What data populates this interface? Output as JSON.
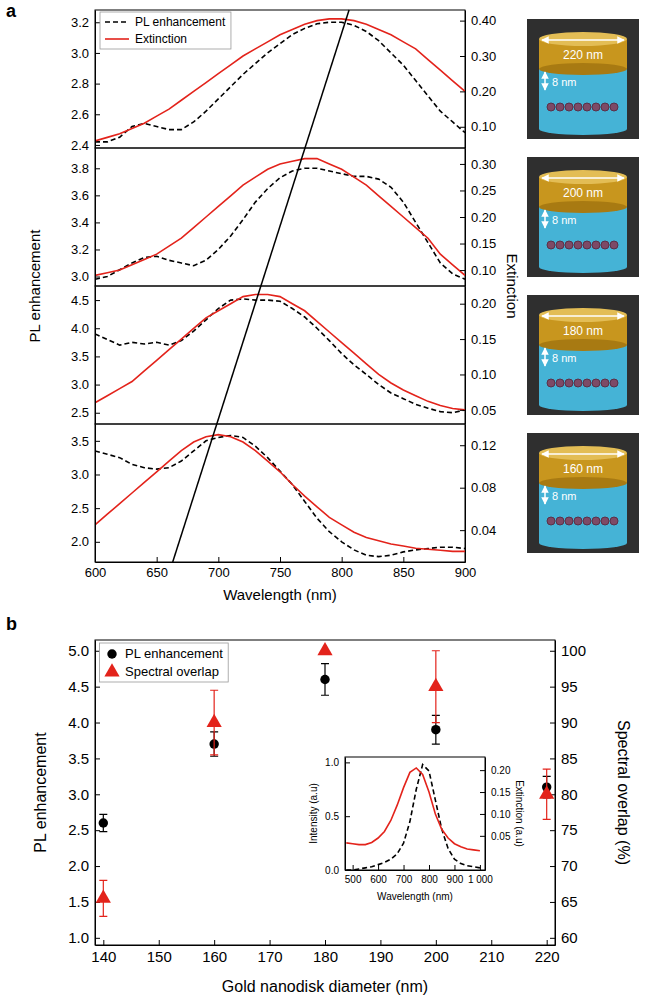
{
  "chart_data": [
    {
      "type": "line",
      "panel": "a",
      "ylabel": "PL enhancement",
      "y2label": "Extinction",
      "legend": "upper left",
      "guide_line": {
        "x": [
          806,
          663
        ]
      },
      "annotations": [
        "220 nm",
        "8 nm"
      ],
      "x": [
        600,
        610,
        620,
        630,
        640,
        650,
        660,
        670,
        680,
        690,
        700,
        710,
        720,
        730,
        740,
        750,
        760,
        770,
        780,
        790,
        800,
        810,
        820,
        830,
        840,
        850,
        860,
        870,
        880,
        890,
        900
      ],
      "xlim": [
        600,
        900
      ],
      "ylim": [
        2.38,
        3.28
      ],
      "yticks": [
        2.4,
        2.6,
        2.8,
        {
          "value": 3.0,
          "label": "3.0"
        },
        3.2
      ],
      "y2lim": [
        0.04,
        0.43
      ],
      "y2ticks": [
        {
          "value": 0.1,
          "label": "0.10"
        },
        {
          "value": 0.2,
          "label": "0.20"
        },
        {
          "value": 0.3,
          "label": "0.30"
        },
        {
          "value": 0.4,
          "label": "0.40"
        }
      ],
      "series": [
        {
          "name": "PL enhancement",
          "color": "#000000",
          "line_style": "dashed",
          "values": [
            2.42,
            2.42,
            2.45,
            2.52,
            2.54,
            2.52,
            2.5,
            2.5,
            2.55,
            2.62,
            2.7,
            2.78,
            2.86,
            2.93,
            3.0,
            3.06,
            3.12,
            3.16,
            3.19,
            3.2,
            3.2,
            3.18,
            3.14,
            3.08,
            3.0,
            2.92,
            2.82,
            2.72,
            2.62,
            2.55,
            2.48
          ]
        },
        {
          "name": "Extinction",
          "color": "#e3231b",
          "line_style": "solid",
          "axis": "y2",
          "values": [
            0.06,
            0.07,
            0.08,
            0.095,
            0.11,
            0.13,
            0.15,
            0.175,
            0.2,
            0.225,
            0.25,
            0.275,
            0.3,
            0.32,
            0.34,
            0.36,
            0.375,
            0.39,
            0.4,
            0.405,
            0.405,
            0.4,
            0.39,
            0.375,
            0.36,
            0.34,
            0.32,
            0.29,
            0.26,
            0.23,
            0.2
          ]
        }
      ]
    },
    {
      "type": "line",
      "annotations": [
        "200 nm",
        "8 nm"
      ],
      "x": [
        600,
        610,
        620,
        630,
        640,
        650,
        660,
        670,
        680,
        690,
        700,
        710,
        720,
        730,
        740,
        750,
        760,
        770,
        780,
        790,
        800,
        810,
        820,
        830,
        840,
        850,
        860,
        870,
        880,
        890,
        900
      ],
      "xlim": [
        600,
        900
      ],
      "ylim": [
        2.93,
        3.95
      ],
      "yticks": [
        {
          "value": 3.0,
          "label": "3.0"
        },
        3.2,
        3.4,
        3.6,
        3.8
      ],
      "y2lim": [
        0.07,
        0.33
      ],
      "y2ticks": [
        {
          "value": 0.1,
          "label": "0.10"
        },
        0.15,
        {
          "value": 0.2,
          "label": "0.20"
        },
        0.25,
        {
          "value": 0.3,
          "label": "0.30"
        }
      ],
      "series": [
        {
          "color": "#000000",
          "line_style": "dashed",
          "values": [
            2.98,
            3.0,
            3.05,
            3.1,
            3.14,
            3.15,
            3.12,
            3.1,
            3.08,
            3.12,
            3.2,
            3.3,
            3.42,
            3.55,
            3.65,
            3.73,
            3.78,
            3.8,
            3.8,
            3.78,
            3.76,
            3.74,
            3.74,
            3.72,
            3.66,
            3.55,
            3.4,
            3.25,
            3.1,
            3.02,
            2.98
          ]
        },
        {
          "color": "#e3231b",
          "line_style": "solid",
          "axis": "y2",
          "values": [
            0.09,
            0.095,
            0.1,
            0.11,
            0.12,
            0.13,
            0.145,
            0.16,
            0.18,
            0.2,
            0.22,
            0.24,
            0.26,
            0.275,
            0.29,
            0.3,
            0.305,
            0.31,
            0.31,
            0.3,
            0.29,
            0.275,
            0.26,
            0.24,
            0.22,
            0.2,
            0.18,
            0.16,
            0.13,
            0.11,
            0.09
          ]
        }
      ]
    },
    {
      "type": "line",
      "annotations": [
        "180 nm",
        "8 nm"
      ],
      "x": [
        600,
        610,
        620,
        630,
        640,
        650,
        660,
        670,
        680,
        690,
        700,
        710,
        720,
        730,
        740,
        750,
        760,
        770,
        780,
        790,
        800,
        810,
        820,
        830,
        840,
        850,
        860,
        870,
        880,
        890,
        900
      ],
      "xlim": [
        600,
        900
      ],
      "ylim": [
        2.3,
        4.75
      ],
      "yticks": [
        2.5,
        {
          "value": 3.0,
          "label": "3.0"
        },
        3.5,
        {
          "value": 4.0,
          "label": "4.0"
        },
        4.5
      ],
      "y2lim": [
        0.03,
        0.225
      ],
      "y2ticks": [
        0.05,
        {
          "value": 0.1,
          "label": "0.10"
        },
        0.15,
        {
          "value": 0.2,
          "label": "0.20"
        }
      ],
      "series": [
        {
          "color": "#000000",
          "line_style": "dashed",
          "values": [
            3.9,
            3.8,
            3.7,
            3.75,
            3.72,
            3.75,
            3.7,
            3.78,
            3.95,
            4.15,
            4.35,
            4.5,
            4.52,
            4.5,
            4.5,
            4.48,
            4.35,
            4.2,
            4.0,
            3.78,
            3.55,
            3.35,
            3.18,
            3.0,
            2.85,
            2.75,
            2.65,
            2.58,
            2.52,
            2.5,
            2.55
          ]
        },
        {
          "color": "#e3231b",
          "line_style": "solid",
          "axis": "y2",
          "values": [
            0.06,
            0.07,
            0.08,
            0.09,
            0.105,
            0.12,
            0.135,
            0.15,
            0.165,
            0.18,
            0.19,
            0.2,
            0.21,
            0.213,
            0.213,
            0.21,
            0.2,
            0.19,
            0.175,
            0.16,
            0.145,
            0.13,
            0.115,
            0.1,
            0.088,
            0.078,
            0.07,
            0.062,
            0.056,
            0.052,
            0.05
          ]
        }
      ]
    },
    {
      "type": "line",
      "xlabel": "Wavelength (nm)",
      "annotations": [
        "160 nm",
        "8 nm"
      ],
      "x": [
        600,
        610,
        620,
        630,
        640,
        650,
        660,
        670,
        680,
        690,
        700,
        710,
        720,
        730,
        740,
        750,
        760,
        770,
        780,
        790,
        800,
        810,
        820,
        830,
        840,
        850,
        860,
        870,
        880,
        890,
        900
      ],
      "xlim": [
        600,
        900
      ],
      "xticks": [
        600,
        650,
        700,
        750,
        800,
        850,
        900
      ],
      "ylim": [
        1.7,
        3.75
      ],
      "yticks": [
        {
          "value": 2.0,
          "label": "2.0"
        },
        2.5,
        {
          "value": 3.0,
          "label": "3.0"
        },
        3.5
      ],
      "y2lim": [
        0.01,
        0.14
      ],
      "y2ticks": [
        0.04,
        0.08,
        0.12
      ],
      "series": [
        {
          "color": "#000000",
          "line_style": "dashed",
          "values": [
            3.35,
            3.3,
            3.25,
            3.15,
            3.1,
            3.08,
            3.1,
            3.2,
            3.35,
            3.5,
            3.55,
            3.58,
            3.55,
            3.42,
            3.25,
            3.05,
            2.85,
            2.6,
            2.35,
            2.15,
            2.0,
            1.88,
            1.8,
            1.78,
            1.8,
            1.85,
            1.88,
            1.9,
            1.92,
            1.92,
            1.9
          ]
        },
        {
          "color": "#e3231b",
          "line_style": "solid",
          "axis": "y2",
          "values": [
            0.045,
            0.055,
            0.065,
            0.075,
            0.085,
            0.095,
            0.105,
            0.115,
            0.123,
            0.128,
            0.13,
            0.128,
            0.123,
            0.115,
            0.105,
            0.095,
            0.083,
            0.072,
            0.062,
            0.052,
            0.045,
            0.038,
            0.033,
            0.03,
            0.027,
            0.025,
            0.023,
            0.022,
            0.021,
            0.02,
            0.02
          ]
        }
      ]
    },
    {
      "type": "scatter",
      "panel": "b",
      "xlabel": "Gold nanodisk diameter (nm)",
      "ylabel": "PL enhancement",
      "y2label": "Spectral overlap (%)",
      "legend": "upper left",
      "x": [
        140,
        160,
        180,
        200,
        220
      ],
      "xlim": [
        138.5,
        221.5
      ],
      "xticks": [
        140,
        150,
        160,
        170,
        180,
        190,
        200,
        210,
        220
      ],
      "ylim": [
        0.9,
        5.15
      ],
      "yticks": [
        {
          "value": 1,
          "label": "1.0"
        },
        1.5,
        {
          "value": 2,
          "label": "2.0"
        },
        2.5,
        {
          "value": 3,
          "label": "3.0"
        },
        3.5,
        {
          "value": 4,
          "label": "4.0"
        },
        4.5,
        {
          "value": 5,
          "label": "5.0"
        }
      ],
      "y2lim": [
        59,
        101.5
      ],
      "y2ticks": [
        60,
        65,
        70,
        75,
        80,
        85,
        90,
        95,
        100
      ],
      "series": [
        {
          "name": "PL enhancement",
          "color": "#000000",
          "marker": "circle",
          "values": [
            2.6,
            3.7,
            4.6,
            3.9,
            3.1
          ],
          "errors": [
            0.12,
            0.17,
            0.22,
            0.2,
            0.15
          ]
        },
        {
          "name": "Spectral overlap",
          "color": "#e3231b",
          "marker": "triangle",
          "axis": "y2",
          "values": [
            65.5,
            90,
            100,
            95,
            80
          ],
          "errors": [
            2.5,
            4.5,
            0,
            5,
            3.5
          ]
        }
      ]
    },
    {
      "type": "line",
      "xlabel": "Wavelength (nm)",
      "ylabel": "Intensity (a.u)",
      "y2label": "Extinction (a.u)",
      "x": [
        475,
        500,
        525,
        550,
        575,
        600,
        625,
        650,
        675,
        700,
        725,
        750,
        775,
        800,
        825,
        850,
        875,
        900,
        925,
        950,
        975,
        1000
      ],
      "xlim": [
        470,
        1020
      ],
      "xticks": [
        500,
        600,
        700,
        800,
        900,
        {
          "value": 1000,
          "label": "1 000"
        }
      ],
      "ylim": [
        0,
        1.05
      ],
      "yticks": [
        {
          "value": 0,
          "label": "0.0"
        },
        0.5,
        {
          "value": 1,
          "label": "1.0"
        }
      ],
      "y2lim": [
        -0.028,
        0.23
      ],
      "y2ticks": [
        0.05,
        {
          "value": 0.1,
          "label": "0.10"
        },
        0.15,
        {
          "value": 0.2,
          "label": "0.20"
        }
      ],
      "series": [
        {
          "color": "#000000",
          "line_style": "dashed",
          "values": [
            0.0,
            0.0,
            0.01,
            0.02,
            0.03,
            0.05,
            0.07,
            0.1,
            0.15,
            0.25,
            0.45,
            0.75,
            0.98,
            0.92,
            0.65,
            0.38,
            0.2,
            0.1,
            0.06,
            0.04,
            0.03,
            0.02
          ]
        },
        {
          "color": "#e3231b",
          "line_style": "solid",
          "axis": "y2",
          "values": [
            0.034,
            0.032,
            0.03,
            0.03,
            0.035,
            0.045,
            0.06,
            0.085,
            0.12,
            0.16,
            0.195,
            0.205,
            0.19,
            0.15,
            0.1,
            0.065,
            0.045,
            0.032,
            0.025,
            0.02,
            0.018,
            0.016
          ]
        }
      ]
    }
  ]
}
